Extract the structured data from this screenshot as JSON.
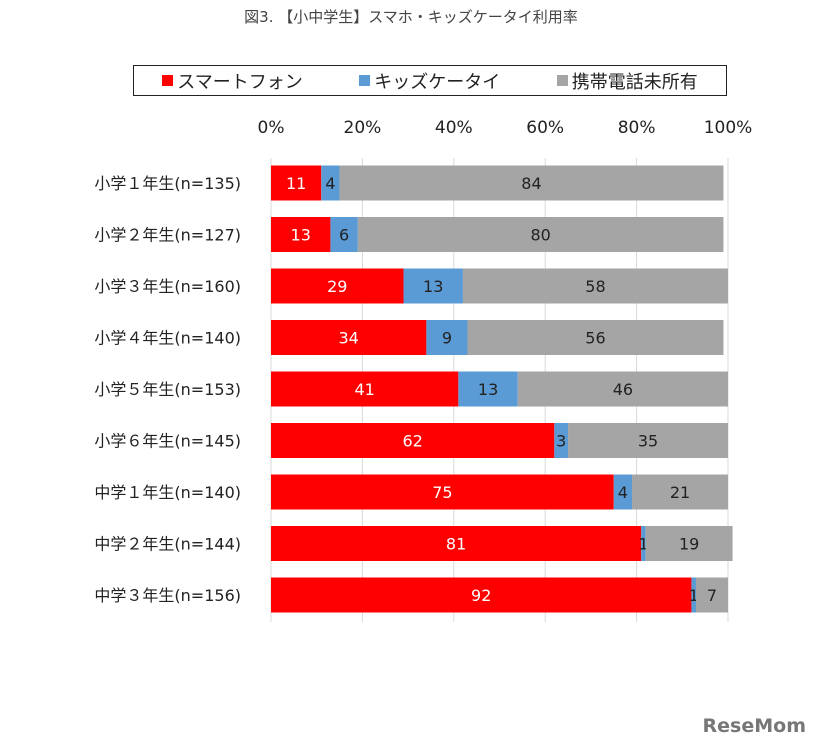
{
  "chart_data": {
    "type": "bar",
    "orientation": "horizontal",
    "stacked": "percent",
    "title": "図3. 【小中学生】スマホ・キッズケータイ利用率",
    "categories": [
      "小学１年生(n=135)",
      "小学２年生(n=127)",
      "小学３年生(n=160)",
      "小学４年生(n=140)",
      "小学５年生(n=153)",
      "小学６年生(n=145)",
      "中学１年生(n=140)",
      "中学２年生(n=144)",
      "中学３年生(n=156)"
    ],
    "series": [
      {
        "name": "スマートフォン",
        "color": "#ff0000",
        "values": [
          11,
          13,
          29,
          34,
          41,
          62,
          75,
          81,
          92
        ]
      },
      {
        "name": "キッズケータイ",
        "color": "#5b9bd5",
        "values": [
          4,
          6,
          13,
          9,
          13,
          3,
          4,
          1,
          1
        ]
      },
      {
        "name": "携帯電話未所有",
        "color": "#a5a5a5",
        "values": [
          84,
          80,
          58,
          56,
          46,
          35,
          21,
          19,
          7
        ]
      }
    ],
    "xticks": [
      "0%",
      "20%",
      "40%",
      "60%",
      "80%",
      "100%"
    ],
    "xlim": [
      0,
      100
    ],
    "grid": true,
    "legend_position": "top"
  },
  "watermark": "ReseMom"
}
